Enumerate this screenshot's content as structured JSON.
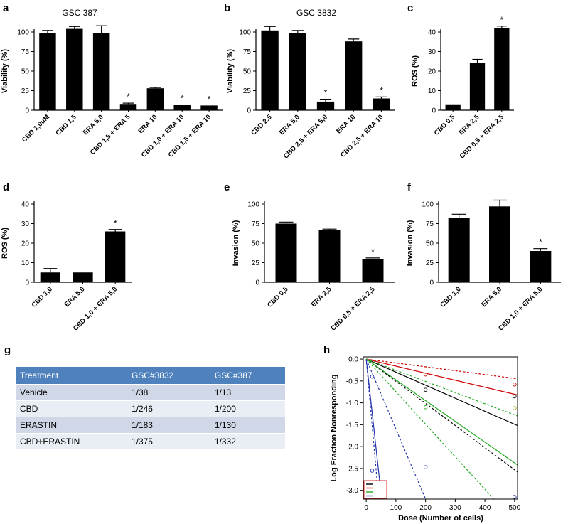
{
  "panel_g": {
    "letter": "g",
    "headers": [
      "Treatment",
      "GSC#3832",
      "GSC#387"
    ],
    "rows": [
      [
        "Vehicle",
        "1/38",
        "1/13"
      ],
      [
        "CBD",
        "1/246",
        "1/200"
      ],
      [
        "ERASTIN",
        "1/183",
        "1/130"
      ],
      [
        "CBD+ERASTIN",
        "1/375",
        "1/332"
      ]
    ]
  },
  "colors": {
    "bar": "#000000",
    "table_header": "#4f81bd",
    "row_odd": "#d0d8e8",
    "row_even": "#e9edf4",
    "line_black": "#000000",
    "line_red": "#cc0000",
    "line_green": "#22aa22",
    "line_blue": "#2233aa"
  },
  "chart_data": [
    {
      "panel": "a",
      "type": "bar",
      "title": "GSC 387",
      "ylabel": "Viability (%)",
      "ylim": [
        0,
        100
      ],
      "yticks": [
        "0",
        "25",
        "50",
        "75",
        "100"
      ],
      "categories": [
        "CBD 1,0uM",
        "CBD 1,5",
        "ERA 5,0",
        "CBD 1,5 + ERA 5",
        "ERA 10",
        "CBD 1,0 + ERA 10",
        "CBD 1,5 + ERA 10"
      ],
      "values": [
        99,
        104,
        99,
        8,
        28,
        7,
        6
      ],
      "errors": [
        3,
        3,
        9,
        1,
        1,
        0,
        0
      ],
      "stars": [
        "",
        "",
        "",
        "*",
        "",
        "*",
        "*"
      ],
      "grid": false
    },
    {
      "panel": "b",
      "type": "bar",
      "title": "GSC 3832",
      "ylabel": "Viability (%)",
      "ylim": [
        0,
        100
      ],
      "yticks": [
        "0",
        "25",
        "50",
        "75",
        "100"
      ],
      "categories": [
        "CBD 2,5",
        "ERA 5,0",
        "CBD 2,5 + ERA 5,0",
        "ERA 10",
        "CBD 2,5 + ERA 10"
      ],
      "values": [
        102,
        99,
        11,
        88,
        15
      ],
      "errors": [
        5,
        3,
        3,
        3,
        2
      ],
      "stars": [
        "",
        "",
        "*",
        "",
        "*"
      ],
      "grid": false
    },
    {
      "panel": "c",
      "type": "bar",
      "title": "",
      "ylabel": "ROS (%)",
      "ylim": [
        0,
        40
      ],
      "yticks": [
        "0",
        "10",
        "20",
        "30",
        "40"
      ],
      "categories": [
        "CBD 0,5",
        "ERA 2,5",
        "CBD 0,5 + ERA 2,5"
      ],
      "values": [
        3,
        24,
        42
      ],
      "errors": [
        0,
        2,
        1
      ],
      "stars": [
        "",
        "",
        "*"
      ],
      "grid": false
    },
    {
      "panel": "d",
      "type": "bar",
      "title": "",
      "ylabel": "ROS (%)",
      "ylim": [
        0,
        40
      ],
      "yticks": [
        "0",
        "10",
        "20",
        "30",
        "40"
      ],
      "categories": [
        "CBD 1,0",
        "ERA 5,0",
        "CBD 1,0 + ERA 5,0"
      ],
      "values": [
        5,
        5,
        26
      ],
      "errors": [
        2,
        0,
        1
      ],
      "stars": [
        "",
        "",
        "*"
      ],
      "grid": false
    },
    {
      "panel": "e",
      "type": "bar",
      "title": "",
      "ylabel": "Invasion (%)",
      "ylim": [
        0,
        100
      ],
      "yticks": [
        "0",
        "25",
        "50",
        "75",
        "100"
      ],
      "categories": [
        "CBD 0,5",
        "ERA 2,5",
        "CBD 0,5 + ERA 2,5"
      ],
      "values": [
        75,
        67,
        30
      ],
      "errors": [
        2,
        1,
        1
      ],
      "stars": [
        "",
        "",
        "*"
      ],
      "grid": false
    },
    {
      "panel": "f",
      "type": "bar",
      "title": "",
      "ylabel": "Invasion (%)",
      "ylim": [
        0,
        100
      ],
      "yticks": [
        "0",
        "25",
        "50",
        "75",
        "100"
      ],
      "categories": [
        "CBD 1,0",
        "ERA 5,0",
        "CBD 1,0 + ERA 5,0"
      ],
      "values": [
        82,
        97,
        40
      ],
      "errors": [
        5,
        8,
        3
      ],
      "stars": [
        "",
        "",
        "*"
      ],
      "grid": false
    },
    {
      "panel": "h",
      "type": "line",
      "title": "",
      "xlabel": "Dose (Number of cells)",
      "ylabel": "Log Fraction Nonresponding",
      "xlim": [
        -10,
        510
      ],
      "ylim": [
        -3.2,
        0.05
      ],
      "xticks": [
        "0",
        "100",
        "200",
        "300",
        "400",
        "500"
      ],
      "yticks": [
        "0.0",
        "-0.5",
        "-1.0",
        "-1.5",
        "-2.0",
        "-2.5",
        "-3.0"
      ],
      "legend_position": "bottom-left",
      "series": [
        {
          "color": "#000000",
          "dash": false,
          "x": [
            0,
            510
          ],
          "y": [
            0,
            -1.52
          ]
        },
        {
          "color": "#000000",
          "dash": true,
          "x": [
            0,
            510
          ],
          "y": [
            0,
            -2.58
          ]
        },
        {
          "color": "#cc0000",
          "dash": false,
          "x": [
            0,
            510
          ],
          "y": [
            0,
            -0.82
          ]
        },
        {
          "color": "#cc0000",
          "dash": true,
          "x": [
            0,
            510
          ],
          "y": [
            0,
            -0.45
          ]
        },
        {
          "color": "#22aa22",
          "dash": false,
          "x": [
            0,
            510
          ],
          "y": [
            0,
            -2.42
          ]
        },
        {
          "color": "#22aa22",
          "dash": true,
          "x": [
            0,
            430
          ],
          "y": [
            0,
            -3.2
          ]
        },
        {
          "color": "#2233aa",
          "dash": false,
          "x": [
            0,
            52
          ],
          "y": [
            0,
            -3.2
          ]
        },
        {
          "color": "#2233aa",
          "dash": true,
          "x": [
            0,
            42
          ],
          "y": [
            0,
            -3.2
          ]
        },
        {
          "color": "#2233aa",
          "dash": true,
          "x": [
            0,
            200
          ],
          "y": [
            0,
            -3.2
          ]
        },
        {
          "color": "#22aa22",
          "dash": true,
          "x": [
            0,
            510
          ],
          "y": [
            0,
            -1.3
          ]
        }
      ],
      "points": [
        {
          "color": "#000000",
          "x": 200,
          "y": -0.7
        },
        {
          "color": "#000000",
          "x": 500,
          "y": -0.85
        },
        {
          "color": "#cc0000",
          "x": 200,
          "y": -0.35
        },
        {
          "color": "#cc0000",
          "x": 500,
          "y": -0.58
        },
        {
          "color": "#22aa22",
          "x": 200,
          "y": -1.1
        },
        {
          "color": "#aaaa22",
          "x": 500,
          "y": -1.12
        },
        {
          "color": "#2233aa",
          "x": 20,
          "y": -0.4
        },
        {
          "color": "#2233aa",
          "x": 20,
          "y": -2.55
        },
        {
          "color": "#2233aa",
          "x": 200,
          "y": -2.47
        },
        {
          "color": "#2233aa",
          "x": 500,
          "y": -3.15
        }
      ]
    }
  ]
}
